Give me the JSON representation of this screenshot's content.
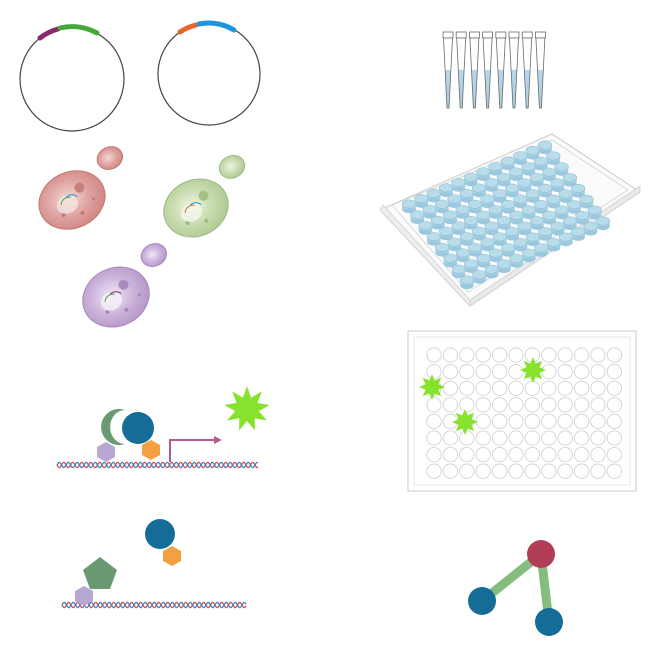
{
  "figure": {
    "panels": [
      {
        "id": "plasmids",
        "icon": "plasmid-icon",
        "count": 2
      },
      {
        "id": "pipette-tips",
        "icon": "multichannel-pipette-tips-icon",
        "count": 8
      },
      {
        "id": "yeast-cells",
        "icon": "yeast-cell-icon",
        "count": 3
      },
      {
        "id": "well-plate",
        "icon": "96-well-plate-icon",
        "rows": 8,
        "cols": 12
      },
      {
        "id": "screening-plate",
        "icon": "fluorescent-hit-plate-icon",
        "rows": 8,
        "cols": 12,
        "hits": 3
      },
      {
        "id": "activated-transcription",
        "icon": "transcription-activation-icon"
      },
      {
        "id": "unbound-complex",
        "icon": "unbound-complex-icon"
      },
      {
        "id": "network",
        "icon": "interaction-network-icon",
        "nodes": 3
      }
    ]
  },
  "colors": {
    "plasmid_purple": "#8a2a6e",
    "plasmid_green": "#46a83a",
    "plasmid_orange": "#e9632c",
    "plasmid_blue": "#1e95d9",
    "yeast_red": "#dca09e",
    "yeast_green": "#c4d8ab",
    "yeast_purple": "#c9afd7",
    "plate_well": "#b9dcea",
    "hit_green": "#86e22c",
    "navy_ball": "#156c97",
    "orange_hex": "#f3a040",
    "lavender_hex": "#b7a8d3",
    "sage_green": "#6a9a72",
    "arrow_pink": "#b55b8c",
    "dna_red": "#d2504a",
    "dna_blue": "#4a7fc1",
    "node_red": "#b33d58",
    "edge_green": "#85bd7f"
  }
}
